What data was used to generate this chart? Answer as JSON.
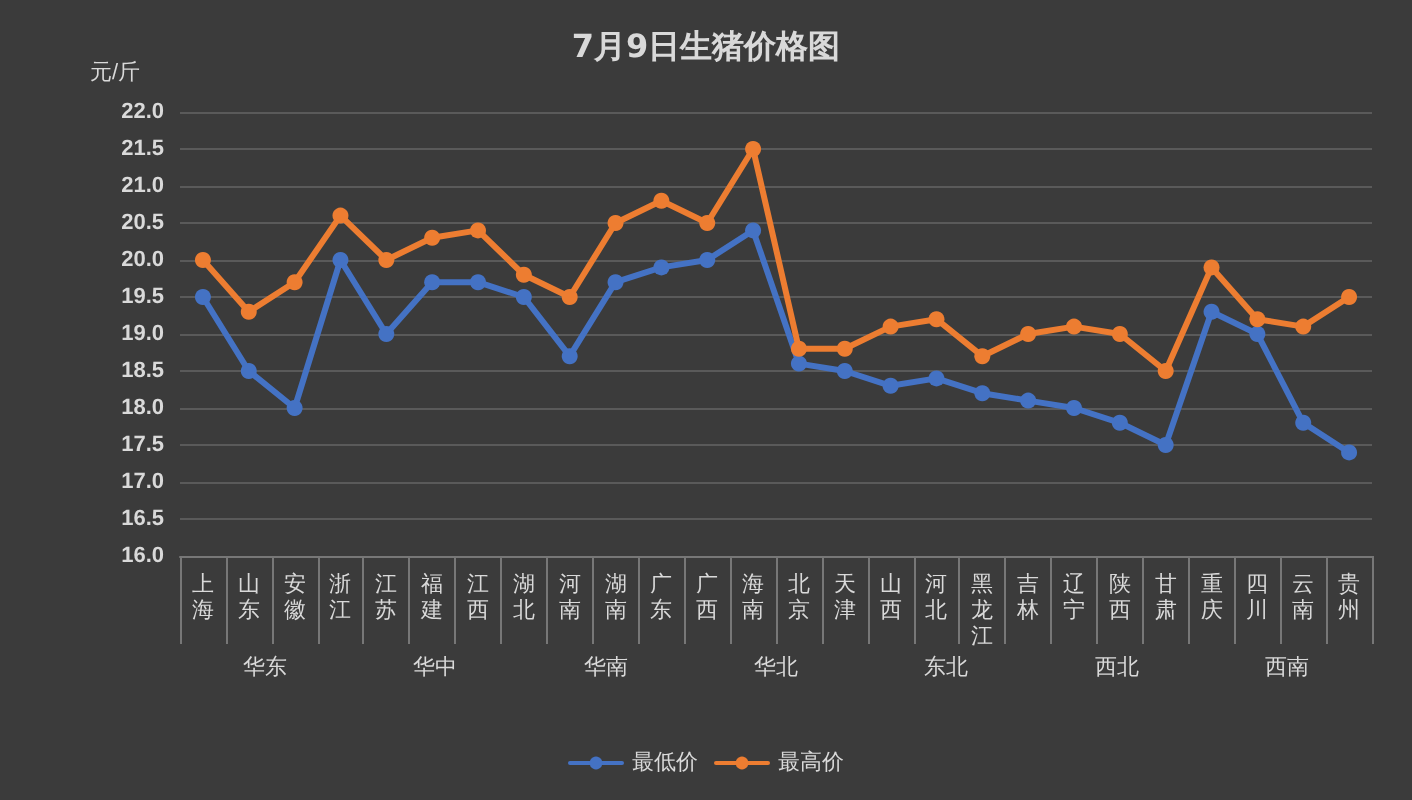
{
  "chart_data": {
    "type": "line",
    "title": "7月9日生猪价格图",
    "ylabel": "元/斤",
    "categories": [
      "上海",
      "山东",
      "安徽",
      "浙江",
      "江苏",
      "福建",
      "江西",
      "湖北",
      "河南",
      "湖南",
      "广东",
      "广西",
      "海南",
      "北京",
      "天津",
      "山西",
      "河北",
      "黑龙江",
      "吉林",
      "辽宁",
      "陕西",
      "甘肃",
      "重庆",
      "四川",
      "云南",
      "贵州"
    ],
    "series": [
      {
        "name": "最低价",
        "color": "#4472c4",
        "values": [
          19.5,
          18.5,
          18.0,
          20.0,
          19.0,
          19.7,
          19.7,
          19.5,
          18.7,
          19.7,
          19.9,
          20.0,
          20.4,
          18.6,
          18.5,
          18.3,
          18.4,
          18.2,
          18.1,
          18.0,
          17.8,
          17.5,
          19.3,
          19.0,
          17.8,
          17.4
        ]
      },
      {
        "name": "最高价",
        "color": "#ed7d31",
        "values": [
          20.0,
          19.3,
          19.7,
          20.6,
          20.0,
          20.3,
          20.4,
          19.8,
          19.5,
          20.5,
          20.8,
          20.5,
          21.5,
          18.8,
          18.8,
          19.1,
          19.2,
          18.7,
          19.0,
          19.1,
          19.0,
          18.5,
          19.9,
          19.2,
          19.1,
          19.5
        ]
      }
    ],
    "ylim": [
      16,
      22
    ],
    "yticks": [
      {
        "value": 16,
        "label": "16.0"
      },
      16.5,
      {
        "value": 17,
        "label": "17.0"
      },
      17.5,
      {
        "value": 18,
        "label": "18.0"
      },
      18.5,
      {
        "value": 19,
        "label": "19.0"
      },
      19.5,
      {
        "value": 20,
        "label": "20.0"
      },
      20.5,
      {
        "value": 21,
        "label": "21.0"
      },
      21.5,
      {
        "value": 22,
        "label": "22.0"
      }
    ],
    "annotations": [
      "华东",
      "华中",
      "华南",
      "华北",
      "东北",
      "西北",
      "西南"
    ],
    "grid": "y",
    "legend": "bottom",
    "marker": "circle",
    "line_style": "solid"
  }
}
